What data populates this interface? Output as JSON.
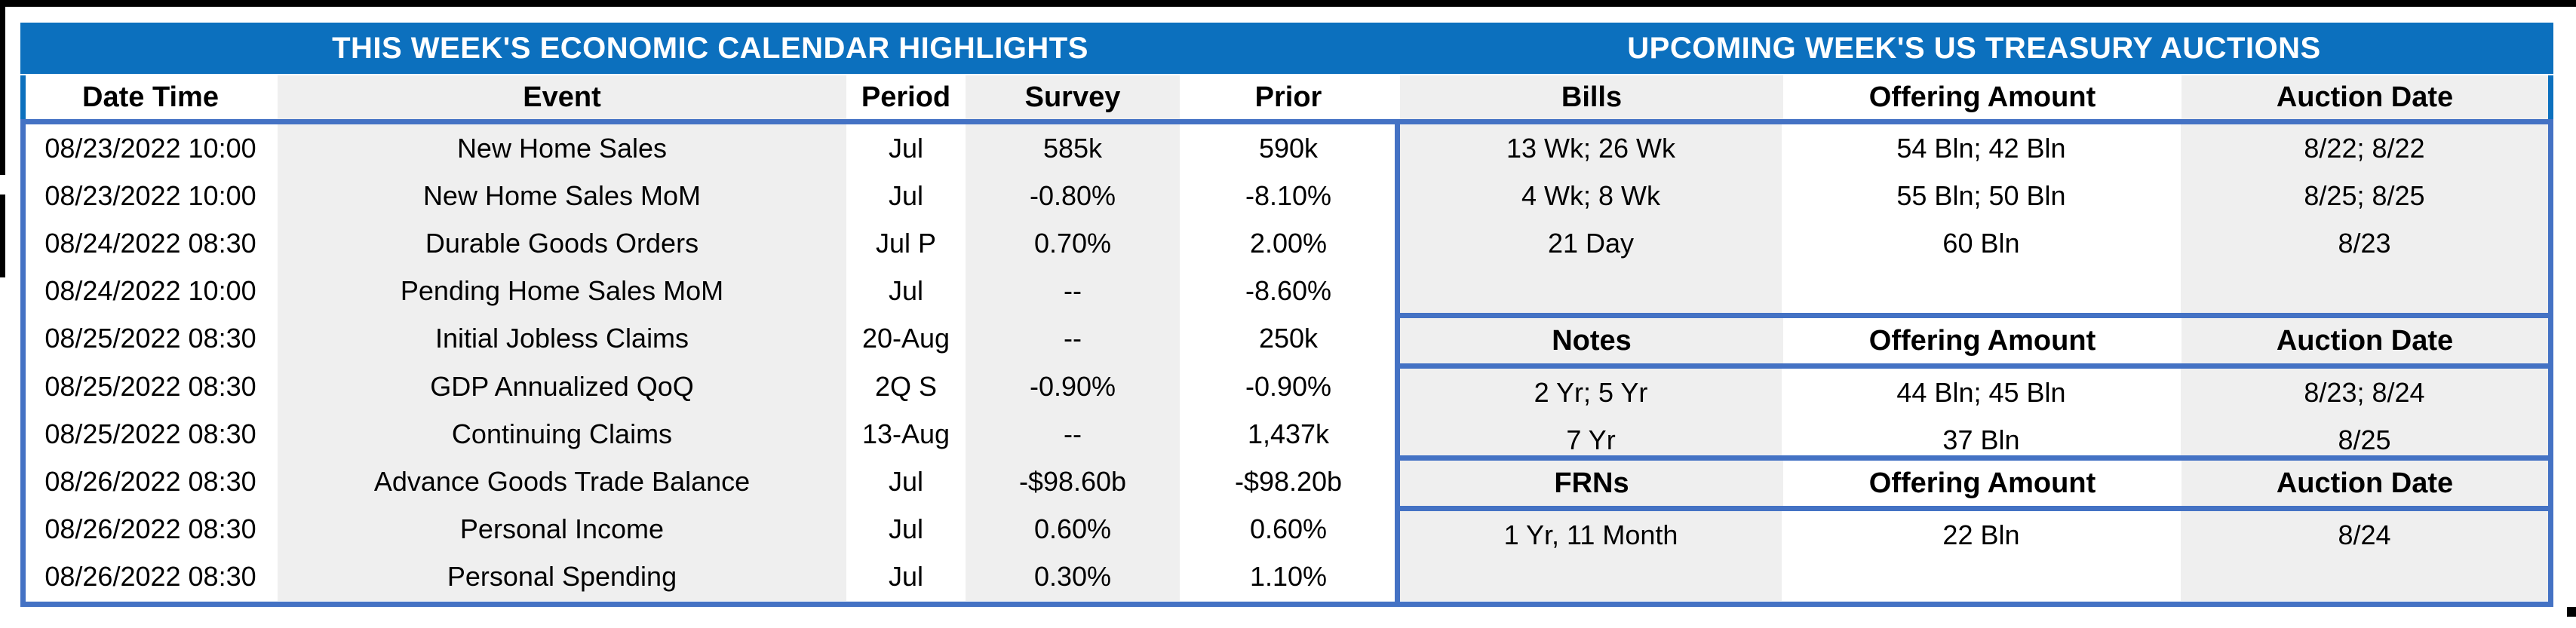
{
  "left_table": {
    "title": "THIS WEEK'S ECONOMIC CALENDAR HIGHLIGHTS",
    "columns": [
      "Date Time",
      "Event",
      "Period",
      "Survey",
      "Prior"
    ],
    "rows": [
      [
        "08/23/2022 10:00",
        "New Home Sales",
        "Jul",
        "585k",
        "590k"
      ],
      [
        "08/23/2022 10:00",
        "New Home Sales MoM",
        "Jul",
        "-0.80%",
        "-8.10%"
      ],
      [
        "08/24/2022 08:30",
        "Durable Goods Orders",
        "Jul P",
        "0.70%",
        "2.00%"
      ],
      [
        "08/24/2022 10:00",
        "Pending Home Sales MoM",
        "Jul",
        "--",
        "-8.60%"
      ],
      [
        "08/25/2022 08:30",
        "Initial Jobless Claims",
        "20-Aug",
        "--",
        "250k"
      ],
      [
        "08/25/2022 08:30",
        "GDP Annualized QoQ",
        "2Q S",
        "-0.90%",
        "-0.90%"
      ],
      [
        "08/25/2022 08:30",
        "Continuing Claims",
        "13-Aug",
        "--",
        "1,437k"
      ],
      [
        "08/26/2022 08:30",
        "Advance Goods Trade Balance",
        "Jul",
        "-$98.60b",
        "-$98.20b"
      ],
      [
        "08/26/2022 08:30",
        "Personal Income",
        "Jul",
        "0.60%",
        "0.60%"
      ],
      [
        "08/26/2022 08:30",
        "Personal Spending",
        "Jul",
        "0.30%",
        "1.10%"
      ]
    ]
  },
  "right_table": {
    "title": "UPCOMING WEEK'S US TREASURY AUCTIONS",
    "sections": [
      {
        "name": "Bills",
        "columns": [
          "Bills",
          "Offering Amount",
          "Auction Date"
        ],
        "rows": [
          [
            "13 Wk; 26 Wk",
            "54 Bln; 42 Bln",
            "8/22; 8/22"
          ],
          [
            "4 Wk; 8 Wk",
            "55 Bln; 50 Bln",
            "8/25; 8/25"
          ],
          [
            "21 Day",
            "60 Bln",
            "8/23"
          ]
        ]
      },
      {
        "name": "Notes",
        "columns": [
          "Notes",
          "Offering Amount",
          "Auction Date"
        ],
        "rows": [
          [
            "2 Yr; 5 Yr",
            "44 Bln; 45 Bln",
            "8/23; 8/24"
          ],
          [
            "7 Yr",
            "37 Bln",
            "8/25"
          ]
        ]
      },
      {
        "name": "FRNs",
        "columns": [
          "FRNs",
          "Offering Amount",
          "Auction Date"
        ],
        "rows": [
          [
            "1 Yr, 11 Month",
            "22 Bln",
            "8/24"
          ]
        ]
      }
    ]
  },
  "colors": {
    "band_blue": "#0C70BE",
    "border_blue": "#4472C4",
    "cell_gray": "#EFEFEF"
  }
}
